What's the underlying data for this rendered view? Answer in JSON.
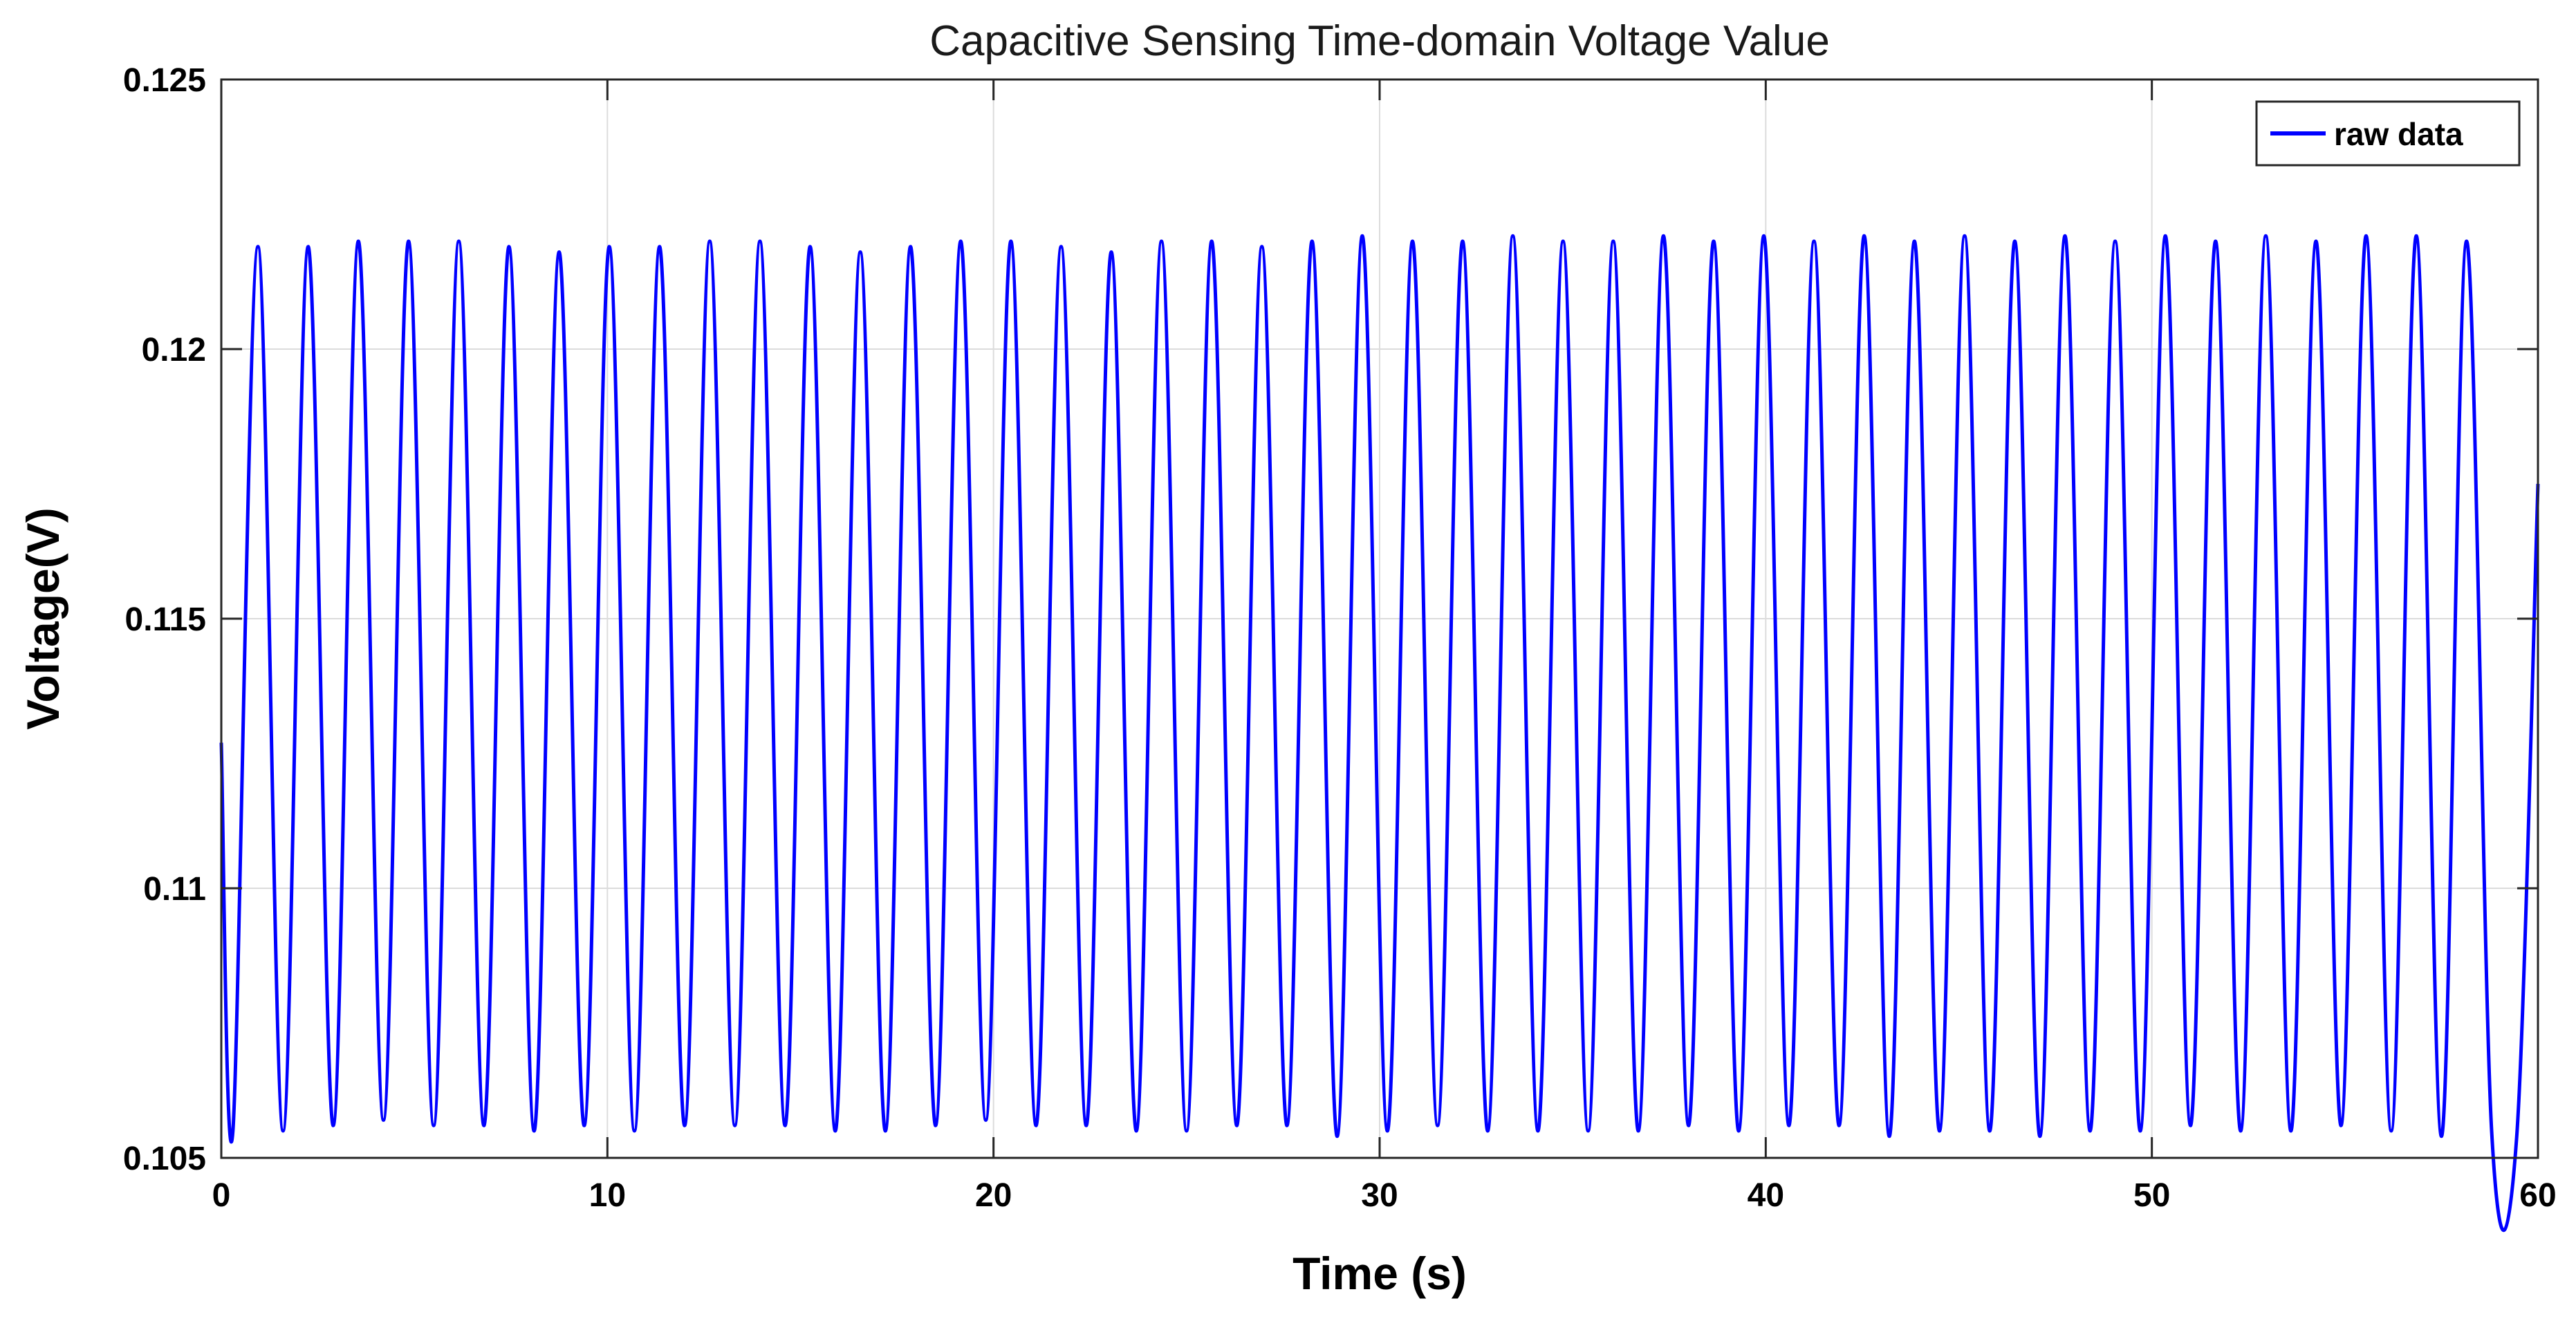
{
  "chart_data": {
    "type": "line",
    "title": "Capacitive Sensing Time-domain Voltage Value",
    "xlabel": "Time (s)",
    "ylabel": "Voltage(V)",
    "xlim": [
      0,
      60
    ],
    "ylim": [
      0.105,
      0.125
    ],
    "xticks": [
      0,
      10,
      20,
      30,
      40,
      50,
      60
    ],
    "xtick_labels": [
      "0",
      "10",
      "20",
      "30",
      "40",
      "50",
      "60"
    ],
    "yticks": [
      0.105,
      0.11,
      0.115,
      0.12,
      0.125
    ],
    "ytick_labels": [
      "0.105",
      "0.11",
      "0.115",
      "0.12",
      "0.125"
    ],
    "grid": true,
    "legend_position": "top-right",
    "series": [
      {
        "name": "raw data",
        "color": "#0000ff",
        "x": [
          0.0,
          0.3,
          0.95,
          1.6,
          2.25,
          2.9,
          3.55,
          4.2,
          4.85,
          5.5,
          6.15,
          6.8,
          7.45,
          8.1,
          8.75,
          9.4,
          10.05,
          10.7,
          11.35,
          12.0,
          12.65,
          13.3,
          13.95,
          14.6,
          15.25,
          15.9,
          16.55,
          17.2,
          17.85,
          18.5,
          19.15,
          19.8,
          20.45,
          21.1,
          21.75,
          22.4,
          23.05,
          23.7,
          24.35,
          25.0,
          25.65,
          26.3,
          26.95,
          27.6,
          28.25,
          28.9,
          29.55,
          30.2,
          30.85,
          31.5,
          32.15,
          32.8,
          33.45,
          34.1,
          34.75,
          35.4,
          36.05,
          36.7,
          37.35,
          38.0,
          38.65,
          39.3,
          39.95,
          40.6,
          41.25,
          41.9,
          42.55,
          43.2,
          43.85,
          44.5,
          45.15,
          45.8,
          46.45,
          47.1,
          47.75,
          48.4,
          49.05,
          49.7,
          50.35,
          51.0,
          51.65,
          52.3,
          52.95,
          53.6,
          54.25,
          54.9,
          55.55,
          56.2,
          56.85,
          57.5,
          58.15,
          58.8,
          59.45,
          60.0
        ],
        "values": [
          0.1127,
          0.1055,
          0.1219,
          0.1055,
          0.1219,
          0.1056,
          0.122,
          0.1057,
          0.122,
          0.1056,
          0.122,
          0.1056,
          0.1219,
          0.1055,
          0.1218,
          0.1056,
          0.1219,
          0.1055,
          0.1219,
          0.1056,
          0.122,
          0.1056,
          0.122,
          0.1056,
          0.1219,
          0.1055,
          0.1218,
          0.1055,
          0.1219,
          0.1056,
          0.122,
          0.1057,
          0.122,
          0.1056,
          0.1219,
          0.1056,
          0.1218,
          0.1055,
          0.122,
          0.1055,
          0.122,
          0.1056,
          0.1219,
          0.1056,
          0.122,
          0.1054,
          0.1221,
          0.1055,
          0.122,
          0.1056,
          0.122,
          0.1055,
          0.1221,
          0.1055,
          0.122,
          0.1055,
          0.122,
          0.1055,
          0.1221,
          0.1056,
          0.122,
          0.1055,
          0.1221,
          0.1056,
          0.122,
          0.1056,
          0.1221,
          0.1054,
          0.122,
          0.1055,
          0.1221,
          0.1055,
          0.122,
          0.1054,
          0.1221,
          0.1055,
          0.122,
          0.1055,
          0.1221,
          0.1056,
          0.122,
          0.1055,
          0.1221,
          0.1055,
          0.122,
          0.1056,
          0.1221,
          0.1055,
          0.1221,
          0.1054,
          0.122,
          0.1055,
          0.1054,
          0.1175
        ]
      }
    ]
  }
}
